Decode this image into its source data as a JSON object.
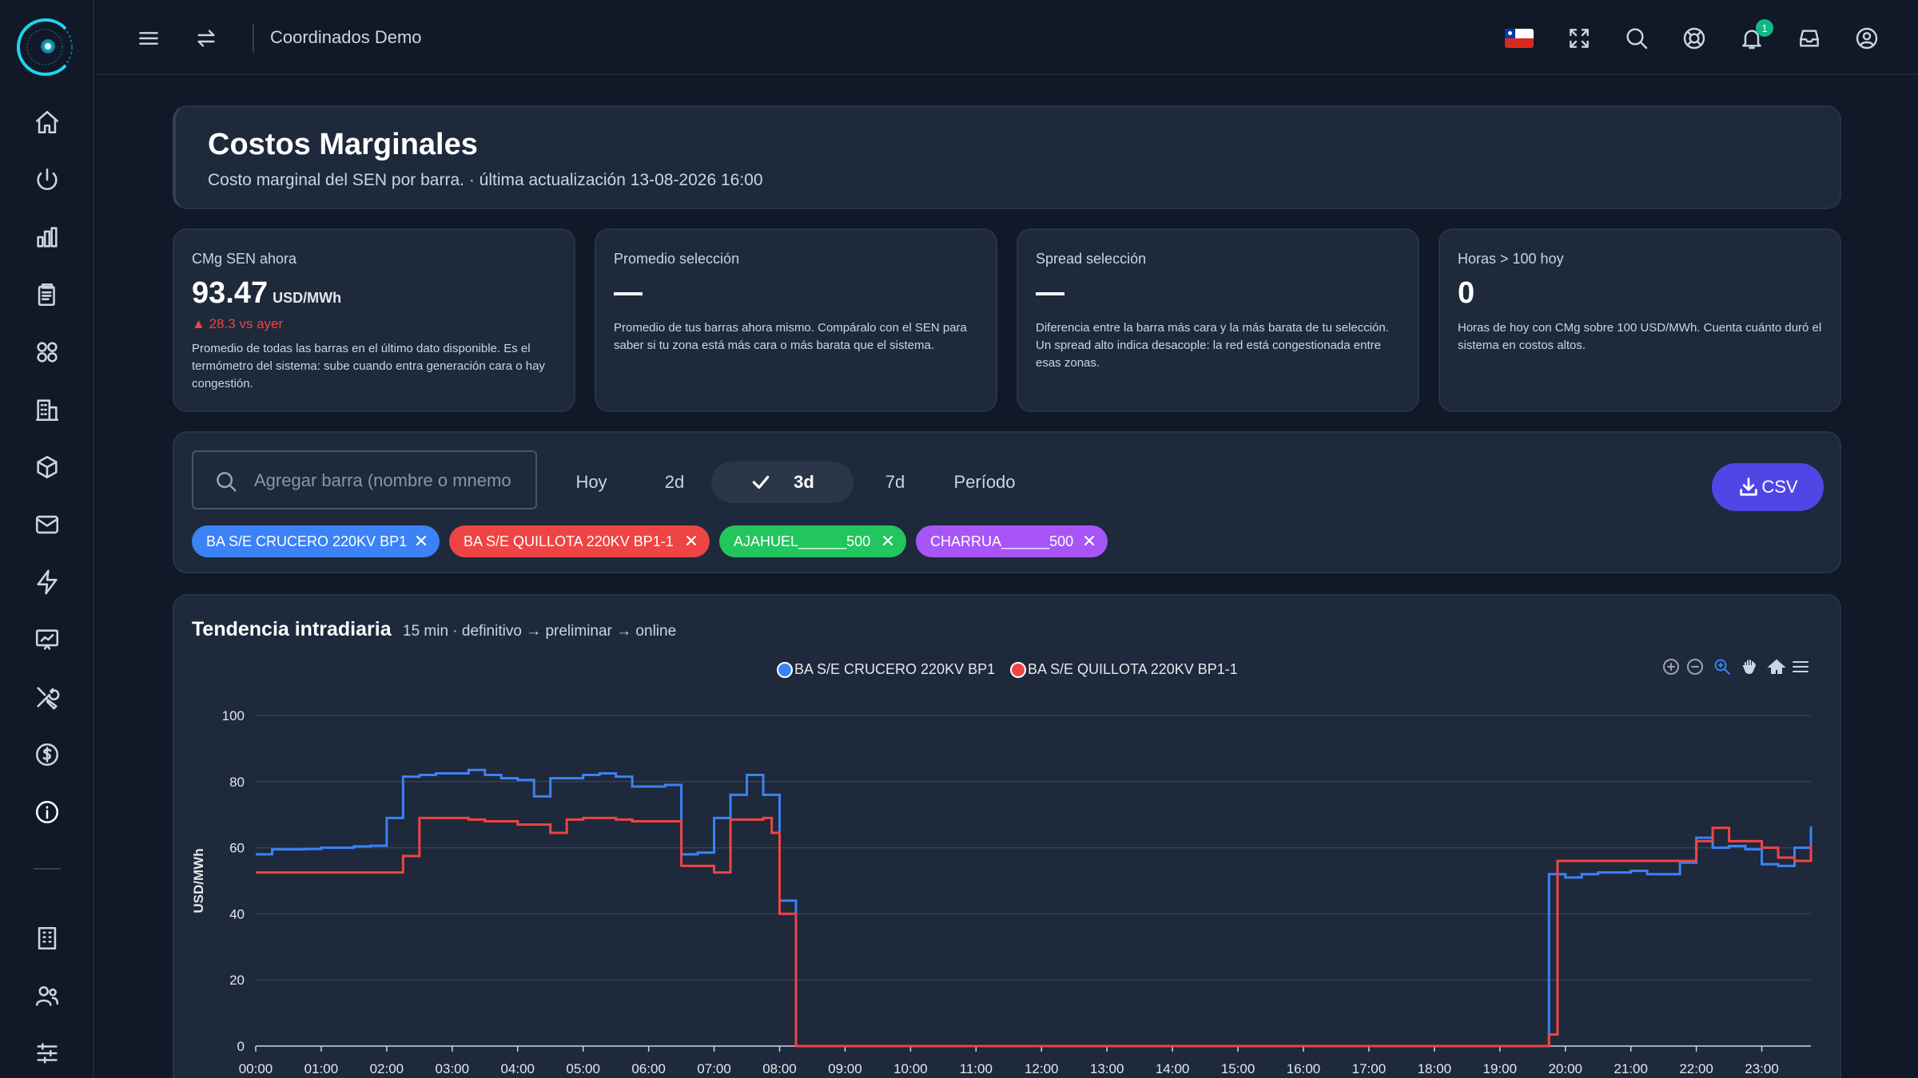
{
  "header": {
    "app_title": "Coordinados Demo",
    "notification_count": "1"
  },
  "sidebar": {
    "items": [
      "home-icon",
      "power-icon",
      "bar-chart-icon",
      "clipboard-icon",
      "apps-grid-icon",
      "building-icon",
      "cube-icon",
      "mail-icon",
      "bolt-icon",
      "presentation-chart-icon",
      "tools-icon",
      "dollar-icon",
      "info-icon",
      "office-building-icon",
      "users-icon",
      "sliders-icon"
    ]
  },
  "page": {
    "title": "Costos Marginales",
    "subtitle": "Costo marginal del SEN por barra. · última actualización 13-08-2026 16:00"
  },
  "kpis": [
    {
      "label": "CMg SEN ahora",
      "value": "93.47",
      "unit": "USD/MWh",
      "delta": "28.3 vs ayer",
      "description": "Promedio de todas las barras en el último dato disponible. Es el termómetro del sistema: sube cuando entra generación cara o hay congestión."
    },
    {
      "label": "Promedio selección",
      "value": "—",
      "description": "Promedio de tus barras ahora mismo. Compáralo con el SEN para saber si tu zona está más cara o más barata que el sistema."
    },
    {
      "label": "Spread selección",
      "value": "—",
      "description": "Diferencia entre la barra más cara y la más barata de tu selección. Un spread alto indica desacople: la red está congestionada entre esas zonas."
    },
    {
      "label": "Horas > 100 hoy",
      "value": "0",
      "description": "Horas de hoy con CMg sobre 100 USD/MWh. Cuenta cuánto duró el sistema en costos altos."
    }
  ],
  "filters": {
    "search_placeholder": "Agregar barra (nombre o mnemo",
    "ranges": [
      "Hoy",
      "2d",
      "3d",
      "7d",
      "Período"
    ],
    "active_range": "3d",
    "csv_label": "CSV",
    "chips": [
      {
        "label": "BA S/E CRUCERO 220KV BP1",
        "color": "#3b82f6"
      },
      {
        "label": "BA S/E QUILLOTA 220KV BP1-1",
        "color": "#ef4444"
      },
      {
        "label": "AJAHUEL______500",
        "color": "#22c55e"
      },
      {
        "label": "CHARRUA______500",
        "color": "#a855f7"
      }
    ]
  },
  "chart": {
    "title": "Tendencia intradiaria",
    "subtitle": "15 min · definitivo → preliminar → online"
  },
  "chart_data": {
    "type": "line",
    "step": true,
    "ylabel": "USD/MWh",
    "ylim": [
      0,
      100
    ],
    "yticks": [
      0,
      20,
      40,
      60,
      80,
      100
    ],
    "xlim": [
      0,
      23.75
    ],
    "xticks": [
      "00:00",
      "01:00",
      "02:00",
      "03:00",
      "04:00",
      "05:00",
      "06:00",
      "07:00",
      "08:00",
      "09:00",
      "10:00",
      "11:00",
      "12:00",
      "13:00",
      "14:00",
      "15:00",
      "16:00",
      "17:00",
      "18:00",
      "19:00",
      "20:00",
      "21:00",
      "22:00",
      "23:00"
    ],
    "grid": true,
    "legend_position": "top-center",
    "series": [
      {
        "name": "BA S/E CRUCERO 220KV BP1",
        "color": "#3b82f6",
        "points": [
          [
            0,
            58
          ],
          [
            0.25,
            59.5
          ],
          [
            0.5,
            59.5
          ],
          [
            0.75,
            59.6
          ],
          [
            1,
            60
          ],
          [
            1.25,
            60
          ],
          [
            1.5,
            60.4
          ],
          [
            1.75,
            60.6
          ],
          [
            2,
            69
          ],
          [
            2.25,
            81.5
          ],
          [
            2.5,
            82
          ],
          [
            2.75,
            82.5
          ],
          [
            3,
            82.5
          ],
          [
            3.25,
            83.5
          ],
          [
            3.5,
            82
          ],
          [
            3.75,
            81
          ],
          [
            4,
            80.5
          ],
          [
            4.25,
            75.5
          ],
          [
            4.5,
            81
          ],
          [
            4.75,
            81
          ],
          [
            5,
            82
          ],
          [
            5.25,
            82.5
          ],
          [
            5.5,
            81.5
          ],
          [
            5.75,
            78.5
          ],
          [
            6,
            78.5
          ],
          [
            6.25,
            79
          ],
          [
            6.5,
            58
          ],
          [
            6.75,
            58.5
          ],
          [
            7,
            69
          ],
          [
            7.25,
            76
          ],
          [
            7.5,
            82
          ],
          [
            7.75,
            76
          ],
          [
            8,
            44
          ],
          [
            8.25,
            0
          ],
          [
            19.5,
            0
          ],
          [
            19.75,
            52
          ],
          [
            20,
            51
          ],
          [
            20.25,
            52
          ],
          [
            20.5,
            52.5
          ],
          [
            20.75,
            52.5
          ],
          [
            21,
            53
          ],
          [
            21.25,
            52
          ],
          [
            21.5,
            52
          ],
          [
            21.75,
            55.5
          ],
          [
            22,
            63
          ],
          [
            22.25,
            60
          ],
          [
            22.5,
            60.5
          ],
          [
            22.75,
            59.5
          ],
          [
            23,
            55
          ],
          [
            23.25,
            54.5
          ],
          [
            23.5,
            60
          ],
          [
            23.75,
            66.5
          ]
        ]
      },
      {
        "name": "BA S/E QUILLOTA 220KV BP1-1",
        "color": "#ef4444",
        "points": [
          [
            0,
            52.5
          ],
          [
            2,
            52.5
          ],
          [
            2.25,
            57.5
          ],
          [
            2.5,
            69
          ],
          [
            3,
            69
          ],
          [
            3.25,
            68.5
          ],
          [
            3.5,
            68
          ],
          [
            4,
            67
          ],
          [
            4.25,
            67
          ],
          [
            4.5,
            64.5
          ],
          [
            4.75,
            68.5
          ],
          [
            5,
            69
          ],
          [
            5.5,
            68.5
          ],
          [
            5.75,
            68
          ],
          [
            6,
            68
          ],
          [
            6.5,
            54.5
          ],
          [
            7,
            52.5
          ],
          [
            7.25,
            68.5
          ],
          [
            7.75,
            69
          ],
          [
            7.88,
            64.5
          ],
          [
            8,
            40
          ],
          [
            8.25,
            0
          ],
          [
            19.5,
            0
          ],
          [
            19.75,
            3.5
          ],
          [
            19.88,
            56
          ],
          [
            20,
            56
          ],
          [
            21.75,
            56
          ],
          [
            22,
            62
          ],
          [
            22.25,
            66
          ],
          [
            22.5,
            62
          ],
          [
            22.75,
            62
          ],
          [
            23,
            60
          ],
          [
            23.25,
            57
          ],
          [
            23.5,
            56
          ],
          [
            23.75,
            61
          ]
        ]
      }
    ]
  }
}
